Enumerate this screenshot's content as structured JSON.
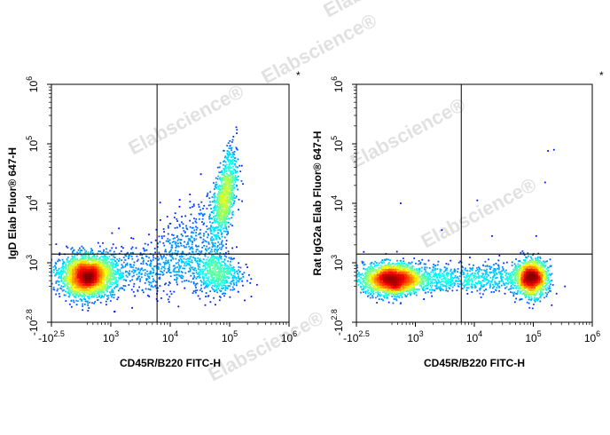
{
  "watermark": {
    "text": "Elabscience",
    "reg": "®"
  },
  "chart_data": [
    {
      "type": "scatter",
      "subtype": "density-dot-plot",
      "xlabel": "CD45R/B220 FITC-H",
      "ylabel": "IgD Elab Fluor® 647-H",
      "corner_mark": "*",
      "x_ticks": [
        {
          "base": "-10",
          "exp": "2.5",
          "v": 0
        },
        {
          "base": "10",
          "exp": "3",
          "v": 1
        },
        {
          "base": "10",
          "exp": "4",
          "v": 2
        },
        {
          "base": "10",
          "exp": "5",
          "v": 3
        },
        {
          "base": "10",
          "exp": "6",
          "v": 4
        }
      ],
      "y_ticks": [
        {
          "base": "-10",
          "exp": "2.8",
          "v": 0
        },
        {
          "base": "10",
          "exp": "3",
          "v": 1
        },
        {
          "base": "10",
          "exp": "4",
          "v": 2
        },
        {
          "base": "10",
          "exp": "5",
          "v": 3
        },
        {
          "base": "10",
          "exp": "6",
          "v": 4
        }
      ],
      "quadrant_gate": {
        "x": 6000,
        "y": 1400
      },
      "populations": [
        {
          "name_hint": "IgD+ B220+",
          "x_center": 80000,
          "y_center": 12000,
          "n": 900
        },
        {
          "name_hint": "B220- IgD-",
          "x_center": 400,
          "y_center": 500,
          "n": 2600
        },
        {
          "name_hint": "B220+ IgD-",
          "x_center": 60000,
          "y_center": 450,
          "n": 600
        }
      ]
    },
    {
      "type": "scatter",
      "subtype": "density-dot-plot",
      "xlabel": "CD45R/B220 FITC-H",
      "ylabel": "Rat IgG2a Elab Fluor® 647-H",
      "corner_mark": "*",
      "x_ticks": [
        {
          "base": "-10",
          "exp": "2.5",
          "v": 0
        },
        {
          "base": "10",
          "exp": "3",
          "v": 1
        },
        {
          "base": "10",
          "exp": "4",
          "v": 2
        },
        {
          "base": "10",
          "exp": "5",
          "v": 3
        },
        {
          "base": "10",
          "exp": "6",
          "v": 4
        }
      ],
      "y_ticks": [
        {
          "base": "-10",
          "exp": "2.8",
          "v": 0
        },
        {
          "base": "10",
          "exp": "3",
          "v": 1
        },
        {
          "base": "10",
          "exp": "4",
          "v": 2
        },
        {
          "base": "10",
          "exp": "5",
          "v": 3
        },
        {
          "base": "10",
          "exp": "6",
          "v": 4
        }
      ],
      "quadrant_gate": {
        "x": 6000,
        "y": 1400
      },
      "populations": [
        {
          "name_hint": "B220-",
          "x_center": 400,
          "y_center": 450,
          "n": 2200
        },
        {
          "name_hint": "B220+",
          "x_center": 70000,
          "y_center": 450,
          "n": 1400
        }
      ]
    }
  ]
}
